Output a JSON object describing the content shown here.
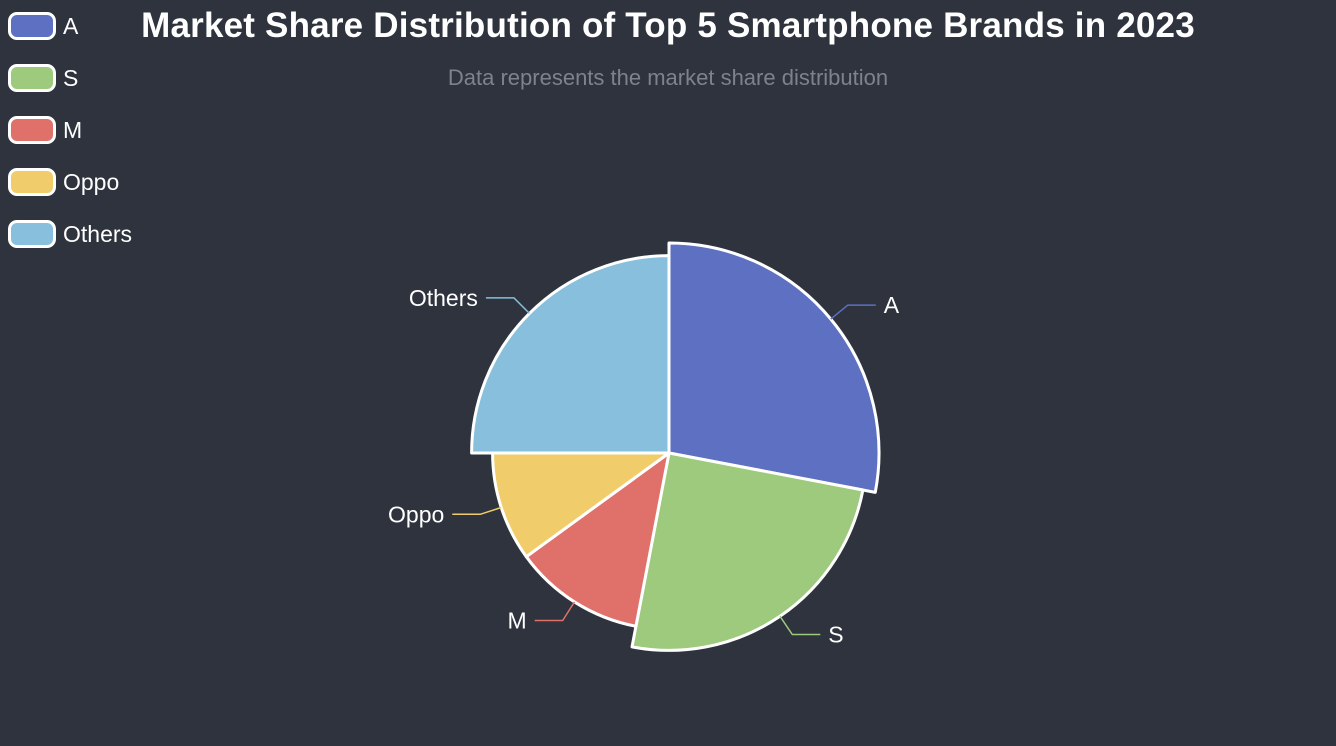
{
  "chart_data": {
    "type": "pie",
    "title": "Market Share Distribution of Top 5 Smartphone Brands in 2023",
    "subtitle": "Data represents the market share distribution",
    "legend_position": "top-left",
    "categories": [
      "A",
      "S",
      "M",
      "Oppo",
      "Others"
    ],
    "values": [
      28,
      25,
      12,
      10,
      25
    ],
    "colors": [
      "#5d70c2",
      "#9dca7d",
      "#e0716a",
      "#f1cc6a",
      "#88bfdd"
    ],
    "radii": [
      1.0,
      0.94,
      0.84,
      0.84,
      0.94
    ]
  }
}
